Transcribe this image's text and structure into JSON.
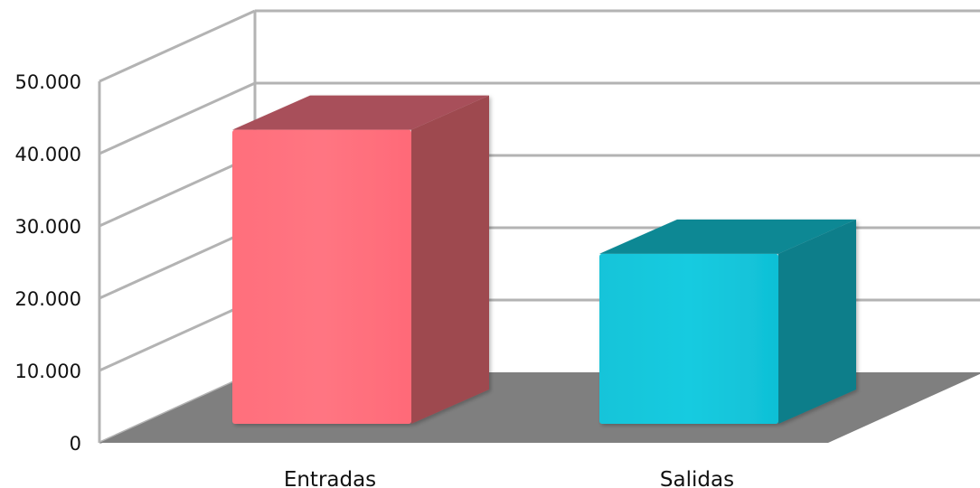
{
  "chart_data": {
    "type": "bar",
    "categories": [
      "Entradas",
      "Salidas"
    ],
    "values": [
      41500,
      24000
    ],
    "ylim": [
      0,
      50000
    ],
    "yticks": [
      "0",
      "10.000",
      "20.000",
      "30.000",
      "40.000",
      "50.000"
    ],
    "grid": true,
    "title": "",
    "xlabel": "",
    "ylabel": "",
    "colors": {
      "Entradas": {
        "front": "#ff7380",
        "side": "#9e4a50",
        "top": "#a8505a"
      },
      "Salidas": {
        "front": "#14c8dc",
        "side": "#0b7e8a",
        "top": "#0c8894"
      },
      "floor": "#7f7f7f",
      "grid": "#b3b3b3"
    }
  }
}
